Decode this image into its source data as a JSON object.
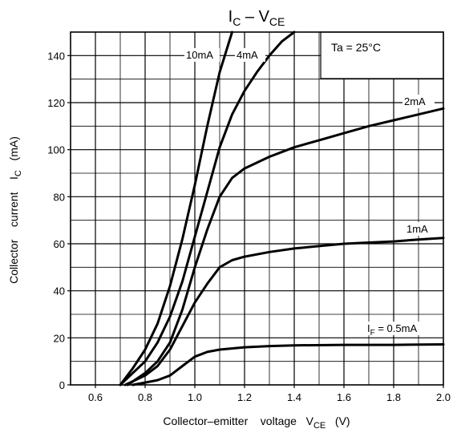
{
  "chart_data": {
    "type": "line",
    "title": {
      "main": "I",
      "sub": "C",
      "rest": " – V",
      "sub2": "CE"
    },
    "xlabel": {
      "main": "Collector–emitter    voltage   V",
      "sub": "CE",
      "rest": "   (V)"
    },
    "ylabel": {
      "main": "Collector    current    I",
      "sub": "C",
      "rest": "   (mA)"
    },
    "condition": "Ta = 25°C",
    "xlim": [
      0.5,
      2.0
    ],
    "ylim": [
      0,
      150
    ],
    "x_ticks": [
      "0.6",
      "0.8",
      "1.0",
      "1.2",
      "1.4",
      "1.6",
      "1.8",
      "2.0"
    ],
    "y_ticks": [
      "0",
      "20",
      "40",
      "60",
      "80",
      "100",
      "120",
      "140"
    ],
    "grid": true,
    "series": [
      {
        "name": "10mA",
        "x": [
          0.7,
          0.75,
          0.8,
          0.85,
          0.9,
          0.95,
          1.0,
          1.05,
          1.1,
          1.15
        ],
        "y": [
          0,
          7,
          15,
          26,
          42,
          62,
          85,
          110,
          133,
          150
        ]
      },
      {
        "name": "4mA",
        "x": [
          0.7,
          0.75,
          0.8,
          0.85,
          0.9,
          0.95,
          1.0,
          1.05,
          1.1,
          1.15,
          1.2,
          1.25,
          1.3,
          1.35,
          1.4
        ],
        "y": [
          0,
          5,
          10,
          18,
          29,
          44,
          63,
          82,
          101,
          115,
          125,
          133,
          140,
          146,
          150
        ]
      },
      {
        "name": "2mA",
        "x": [
          0.73,
          0.8,
          0.85,
          0.9,
          0.95,
          1.0,
          1.05,
          1.1,
          1.15,
          1.2,
          1.3,
          1.4,
          1.5,
          1.6,
          1.7,
          1.8,
          1.9,
          2.0
        ],
        "y": [
          0,
          5,
          10,
          18,
          32,
          50,
          66,
          80,
          88,
          92,
          97,
          101,
          104,
          107,
          110,
          112.5,
          115,
          117.5
        ]
      },
      {
        "name": "1mA",
        "x": [
          0.72,
          0.8,
          0.85,
          0.9,
          0.95,
          1.0,
          1.05,
          1.1,
          1.15,
          1.2,
          1.3,
          1.4,
          1.5,
          1.6,
          1.7,
          1.8,
          1.9,
          2.0
        ],
        "y": [
          0,
          4,
          8,
          15,
          25,
          35,
          43,
          50,
          53,
          54.5,
          56.5,
          58,
          59,
          60,
          60.5,
          61,
          61.8,
          62.5
        ]
      },
      {
        "name": "0.5mA",
        "display": "I",
        "display_sub": "F",
        "display_rest": " = 0.5mA",
        "x": [
          0.75,
          0.8,
          0.85,
          0.9,
          0.95,
          1.0,
          1.05,
          1.1,
          1.2,
          1.3,
          1.4,
          1.6,
          1.8,
          2.0
        ],
        "y": [
          0,
          1,
          2,
          4,
          8,
          12,
          14,
          15,
          16,
          16.5,
          16.8,
          17,
          17,
          17.2
        ]
      }
    ]
  }
}
